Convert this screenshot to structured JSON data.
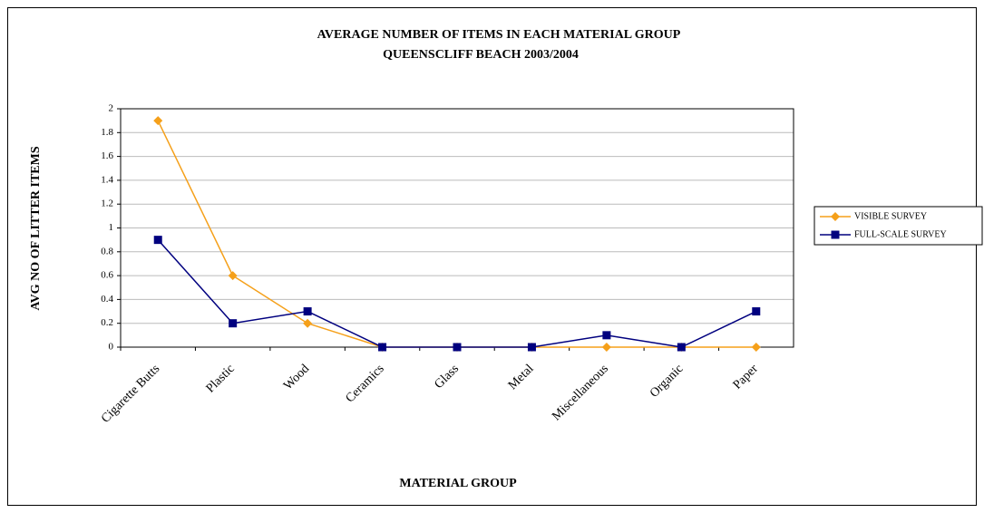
{
  "chart_data": {
    "type": "line",
    "title": "AVERAGE NUMBER OF ITEMS IN EACH MATERIAL GROUP",
    "subtitle": "QUEENSCLIFF BEACH 2003/2004",
    "x_label": "MATERIAL GROUP",
    "y_label": "AVG NO OF LITTER ITEMS",
    "categories": [
      "Cigarette Butts",
      "Plastic",
      "Wood",
      "Ceramics",
      "Glass",
      "Metal",
      "Miscellaneous",
      "Organic",
      "Paper"
    ],
    "series": [
      {
        "name": "VISIBLE SURVEY",
        "color": "#f5a01a",
        "marker": "diamond",
        "values": [
          1.9,
          0.6,
          0.2,
          0,
          0,
          0,
          0,
          0,
          0
        ]
      },
      {
        "name": "FULL-SCALE SURVEY",
        "color": "#00007f",
        "marker": "square",
        "values": [
          0.9,
          0.2,
          0.3,
          0,
          0,
          0,
          0.1,
          0,
          0.3
        ]
      }
    ],
    "ylim": [
      0,
      2
    ],
    "yticks": [
      0,
      0.2,
      0.4,
      0.6,
      0.8,
      1,
      1.2,
      1.4,
      1.6,
      1.8,
      2
    ],
    "grid": true,
    "legend": "right"
  }
}
